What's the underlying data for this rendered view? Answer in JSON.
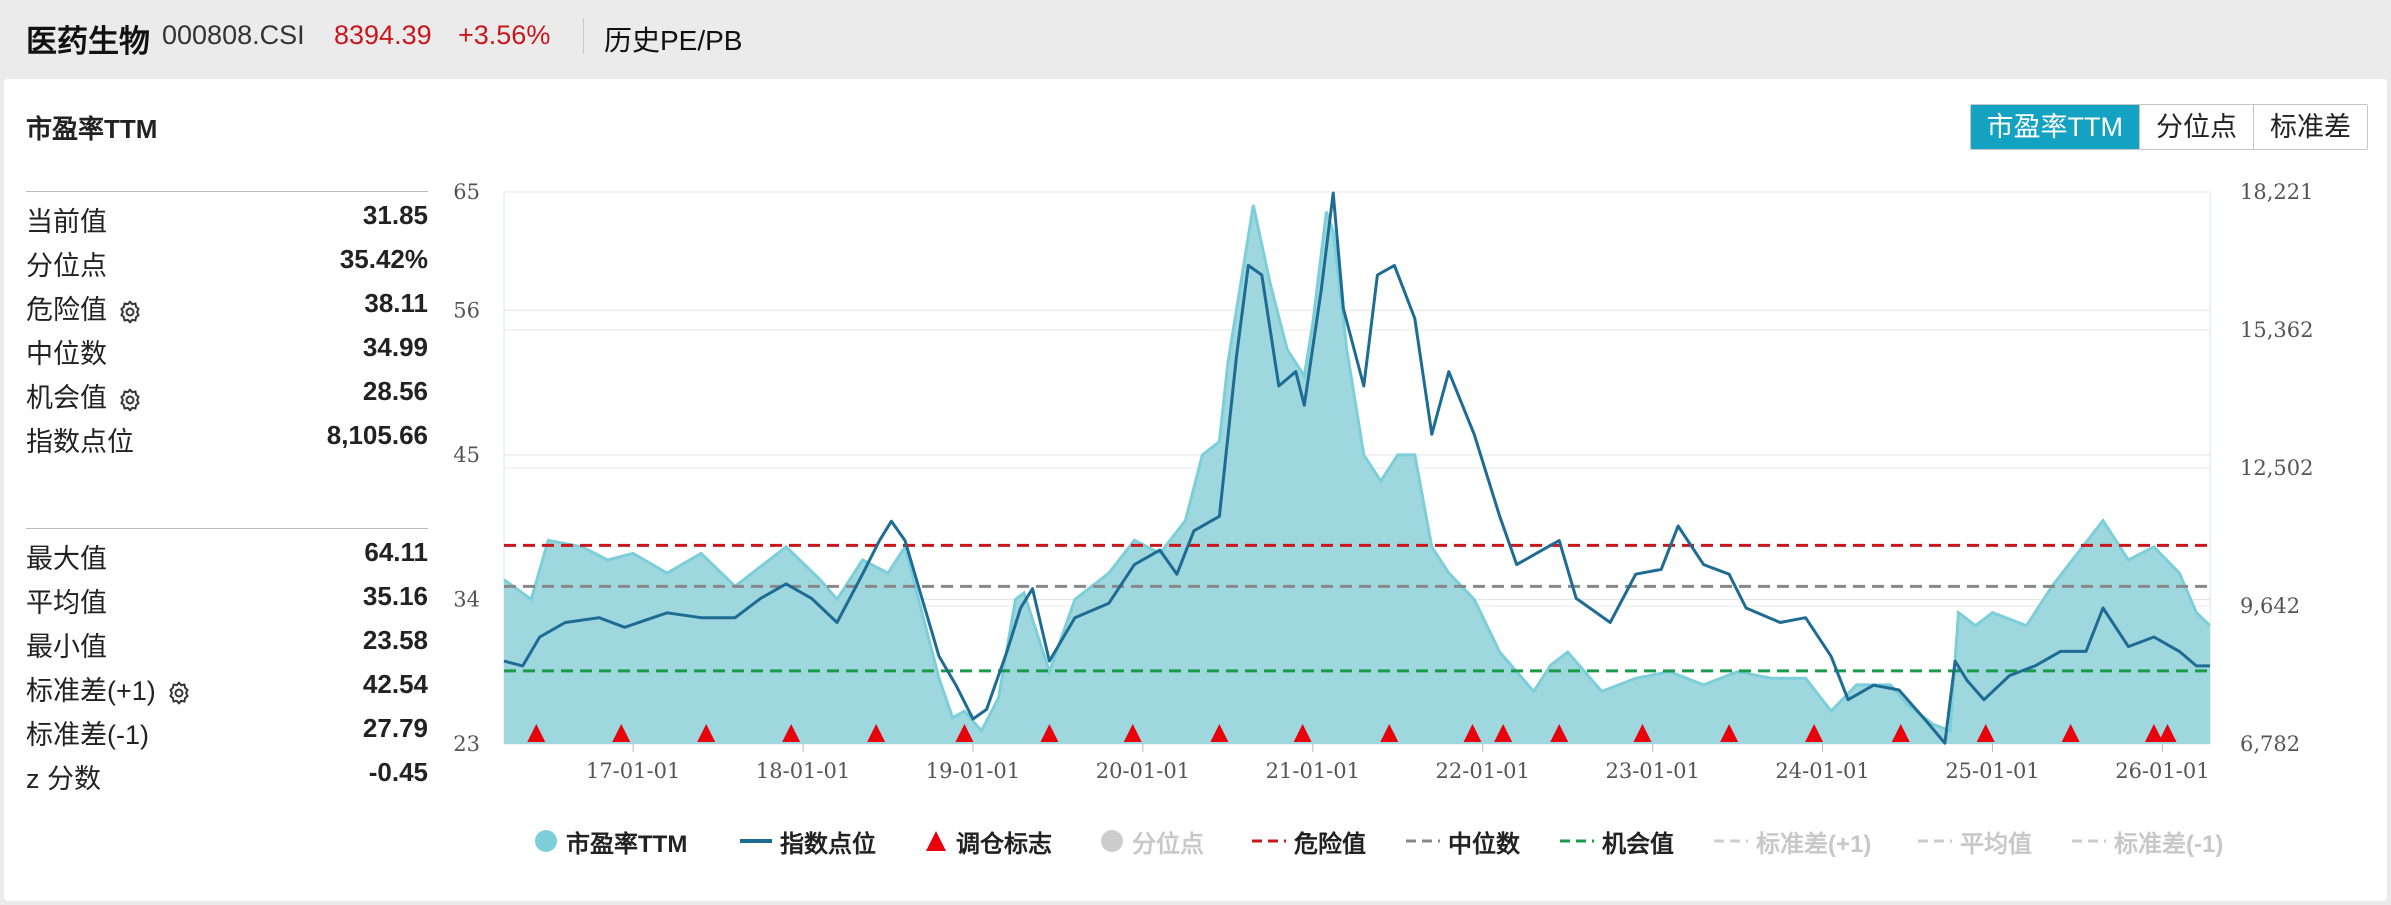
{
  "header": {
    "index_name": "医药生物",
    "index_code": "000808.CSI",
    "last_price": "8394.39",
    "change_pct": "+3.56%",
    "tab_label": "历史PE/PB"
  },
  "panel": {
    "title": "市盈率TTM",
    "view_buttons": [
      "市盈率TTM",
      "分位点",
      "标准差"
    ]
  },
  "stats_group_1": [
    {
      "label": "当前值",
      "value": "31.85",
      "gear": false
    },
    {
      "label": "分位点",
      "value": "35.42%",
      "gear": false
    },
    {
      "label": "危险值",
      "value": "38.11",
      "gear": true
    },
    {
      "label": "中位数",
      "value": "34.99",
      "gear": false
    },
    {
      "label": "机会值",
      "value": "28.56",
      "gear": true
    },
    {
      "label": "指数点位",
      "value": "8,105.66",
      "gear": false
    }
  ],
  "stats_group_2": [
    {
      "label": "最大值",
      "value": "64.11",
      "gear": false
    },
    {
      "label": "平均值",
      "value": "35.16",
      "gear": false
    },
    {
      "label": "最小值",
      "value": "23.58",
      "gear": false
    },
    {
      "label": "标准差(+1)",
      "value": "42.54",
      "gear": true
    },
    {
      "label": "标准差(-1)",
      "value": "27.79",
      "gear": false
    },
    {
      "label": "z 分数",
      "value": "-0.45",
      "gear": false
    }
  ],
  "legend": [
    {
      "label": "市盈率TTM",
      "kind": "dot",
      "color": "#7ccfd9",
      "active": true
    },
    {
      "label": "指数点位",
      "kind": "line",
      "color": "#1e6b94",
      "active": true
    },
    {
      "label": "调仓标志",
      "kind": "triangle",
      "color": "#e8000b",
      "active": true
    },
    {
      "label": "分位点",
      "kind": "dot",
      "color": "#cccccc",
      "active": false
    },
    {
      "label": "危险值",
      "kind": "dash",
      "color": "#c9171e",
      "active": true
    },
    {
      "label": "中位数",
      "kind": "dash",
      "color": "#888888",
      "active": true
    },
    {
      "label": "机会值",
      "kind": "dash",
      "color": "#1a9a4a",
      "active": true
    },
    {
      "label": "标准差(+1)",
      "kind": "dash",
      "color": "#cccccc",
      "active": false
    },
    {
      "label": "平均值",
      "kind": "dash",
      "color": "#cccccc",
      "active": false
    },
    {
      "label": "标准差(-1)",
      "kind": "dash",
      "color": "#cccccc",
      "active": false
    }
  ],
  "chart_data": {
    "type": "area",
    "title": "市盈率TTM",
    "x_tick_labels": [
      "17-01-01",
      "18-01-01",
      "19-01-01",
      "20-01-01",
      "21-01-01",
      "22-01-01",
      "23-01-01",
      "24-01-01",
      "25-01-01",
      "26-01-01"
    ],
    "x_range": [
      2016.24,
      2026.28
    ],
    "left_axis": {
      "ticks": [
        23,
        34,
        45,
        56,
        65
      ],
      "range": [
        23,
        65
      ]
    },
    "right_axis": {
      "ticks": [
        "6,782",
        "9,642",
        "12,502",
        "15,362",
        "18,221"
      ],
      "range": [
        6782,
        18221
      ]
    },
    "reference_lines": {
      "danger": 38.11,
      "median": 34.99,
      "opportunity": 28.56
    },
    "series": [
      {
        "name": "市盈率TTM",
        "axis": "left",
        "points": [
          [
            2016.24,
            35.5
          ],
          [
            2016.4,
            34.0
          ],
          [
            2016.5,
            38.5
          ],
          [
            2016.7,
            38.0
          ],
          [
            2016.85,
            37.0
          ],
          [
            2017.0,
            37.5
          ],
          [
            2017.2,
            36.0
          ],
          [
            2017.4,
            37.5
          ],
          [
            2017.6,
            35.0
          ],
          [
            2017.75,
            36.5
          ],
          [
            2017.9,
            38.0
          ],
          [
            2018.1,
            35.5
          ],
          [
            2018.2,
            34.0
          ],
          [
            2018.35,
            37.0
          ],
          [
            2018.5,
            36.0
          ],
          [
            2018.6,
            38.0
          ],
          [
            2018.7,
            33.0
          ],
          [
            2018.8,
            28.0
          ],
          [
            2018.88,
            25.0
          ],
          [
            2018.95,
            25.5
          ],
          [
            2019.05,
            24.0
          ],
          [
            2019.15,
            26.5
          ],
          [
            2019.25,
            34.0
          ],
          [
            2019.3,
            34.5
          ],
          [
            2019.45,
            28.5
          ],
          [
            2019.6,
            34.0
          ],
          [
            2019.8,
            36.0
          ],
          [
            2019.95,
            38.5
          ],
          [
            2020.1,
            37.5
          ],
          [
            2020.25,
            40.0
          ],
          [
            2020.35,
            45.0
          ],
          [
            2020.45,
            46.0
          ],
          [
            2020.5,
            52.0
          ],
          [
            2020.6,
            60.0
          ],
          [
            2020.65,
            64.0
          ],
          [
            2020.75,
            58.0
          ],
          [
            2020.85,
            53.0
          ],
          [
            2020.95,
            51.0
          ],
          [
            2021.0,
            55.0
          ],
          [
            2021.08,
            63.5
          ],
          [
            2021.12,
            62.0
          ],
          [
            2021.2,
            53.0
          ],
          [
            2021.3,
            45.0
          ],
          [
            2021.4,
            43.0
          ],
          [
            2021.5,
            45.0
          ],
          [
            2021.6,
            45.0
          ],
          [
            2021.7,
            38.0
          ],
          [
            2021.8,
            36.0
          ],
          [
            2021.95,
            34.0
          ],
          [
            2022.1,
            30.0
          ],
          [
            2022.3,
            27.0
          ],
          [
            2022.4,
            29.0
          ],
          [
            2022.5,
            30.0
          ],
          [
            2022.7,
            27.0
          ],
          [
            2022.9,
            28.0
          ],
          [
            2023.1,
            28.5
          ],
          [
            2023.3,
            27.5
          ],
          [
            2023.5,
            28.5
          ],
          [
            2023.7,
            28.0
          ],
          [
            2023.9,
            28.0
          ],
          [
            2024.05,
            25.5
          ],
          [
            2024.2,
            27.5
          ],
          [
            2024.4,
            27.5
          ],
          [
            2024.5,
            26.0
          ],
          [
            2024.65,
            24.5
          ],
          [
            2024.75,
            24.0
          ],
          [
            2024.8,
            33.0
          ],
          [
            2024.9,
            32.0
          ],
          [
            2025.0,
            33.0
          ],
          [
            2025.2,
            32.0
          ],
          [
            2025.35,
            35.0
          ],
          [
            2025.5,
            37.5
          ],
          [
            2025.65,
            40.0
          ],
          [
            2025.8,
            37.0
          ],
          [
            2025.95,
            38.0
          ],
          [
            2026.1,
            36.0
          ],
          [
            2026.2,
            33.0
          ],
          [
            2026.28,
            32.0
          ]
        ]
      },
      {
        "name": "指数点位",
        "axis": "right",
        "points": [
          [
            2016.24,
            8500
          ],
          [
            2016.35,
            8400
          ],
          [
            2016.45,
            9000
          ],
          [
            2016.6,
            9300
          ],
          [
            2016.8,
            9400
          ],
          [
            2016.95,
            9200
          ],
          [
            2017.2,
            9500
          ],
          [
            2017.4,
            9400
          ],
          [
            2017.6,
            9400
          ],
          [
            2017.75,
            9800
          ],
          [
            2017.9,
            10100
          ],
          [
            2018.05,
            9800
          ],
          [
            2018.2,
            9300
          ],
          [
            2018.35,
            10300
          ],
          [
            2018.45,
            11000
          ],
          [
            2018.52,
            11400
          ],
          [
            2018.6,
            11000
          ],
          [
            2018.7,
            9800
          ],
          [
            2018.8,
            8600
          ],
          [
            2018.9,
            8000
          ],
          [
            2019.0,
            7300
          ],
          [
            2019.08,
            7500
          ],
          [
            2019.2,
            8700
          ],
          [
            2019.28,
            9600
          ],
          [
            2019.35,
            10000
          ],
          [
            2019.45,
            8500
          ],
          [
            2019.6,
            9400
          ],
          [
            2019.8,
            9700
          ],
          [
            2019.95,
            10500
          ],
          [
            2020.1,
            10800
          ],
          [
            2020.2,
            10300
          ],
          [
            2020.3,
            11200
          ],
          [
            2020.45,
            11500
          ],
          [
            2020.55,
            14800
          ],
          [
            2020.62,
            16700
          ],
          [
            2020.7,
            16500
          ],
          [
            2020.8,
            14200
          ],
          [
            2020.9,
            14500
          ],
          [
            2020.95,
            13800
          ],
          [
            2021.05,
            16200
          ],
          [
            2021.12,
            18200
          ],
          [
            2021.18,
            15800
          ],
          [
            2021.3,
            14200
          ],
          [
            2021.38,
            16500
          ],
          [
            2021.48,
            16700
          ],
          [
            2021.6,
            15600
          ],
          [
            2021.7,
            13200
          ],
          [
            2021.8,
            14500
          ],
          [
            2021.95,
            13200
          ],
          [
            2022.1,
            11500
          ],
          [
            2022.2,
            10500
          ],
          [
            2022.35,
            10800
          ],
          [
            2022.45,
            11000
          ],
          [
            2022.55,
            9800
          ],
          [
            2022.75,
            9300
          ],
          [
            2022.9,
            10300
          ],
          [
            2023.05,
            10400
          ],
          [
            2023.15,
            11300
          ],
          [
            2023.3,
            10500
          ],
          [
            2023.45,
            10300
          ],
          [
            2023.55,
            9600
          ],
          [
            2023.75,
            9300
          ],
          [
            2023.9,
            9400
          ],
          [
            2024.05,
            8600
          ],
          [
            2024.15,
            7700
          ],
          [
            2024.3,
            8000
          ],
          [
            2024.45,
            7900
          ],
          [
            2024.6,
            7300
          ],
          [
            2024.72,
            6800
          ],
          [
            2024.78,
            8500
          ],
          [
            2024.85,
            8100
          ],
          [
            2024.95,
            7700
          ],
          [
            2025.1,
            8200
          ],
          [
            2025.25,
            8400
          ],
          [
            2025.4,
            8700
          ],
          [
            2025.55,
            8700
          ],
          [
            2025.65,
            9600
          ],
          [
            2025.8,
            8800
          ],
          [
            2025.95,
            9000
          ],
          [
            2026.1,
            8700
          ],
          [
            2026.2,
            8400
          ],
          [
            2026.28,
            8400
          ]
        ]
      },
      {
        "name": "调仓标志",
        "axis": "left",
        "x": [
          2016.43,
          2016.93,
          2017.43,
          2017.93,
          2018.43,
          2018.95,
          2019.45,
          2019.94,
          2020.45,
          2020.94,
          2021.45,
          2021.94,
          2022.12,
          2022.45,
          2022.94,
          2023.45,
          2023.95,
          2024.46,
          2024.96,
          2025.46,
          2025.95,
          2026.03
        ]
      }
    ]
  }
}
